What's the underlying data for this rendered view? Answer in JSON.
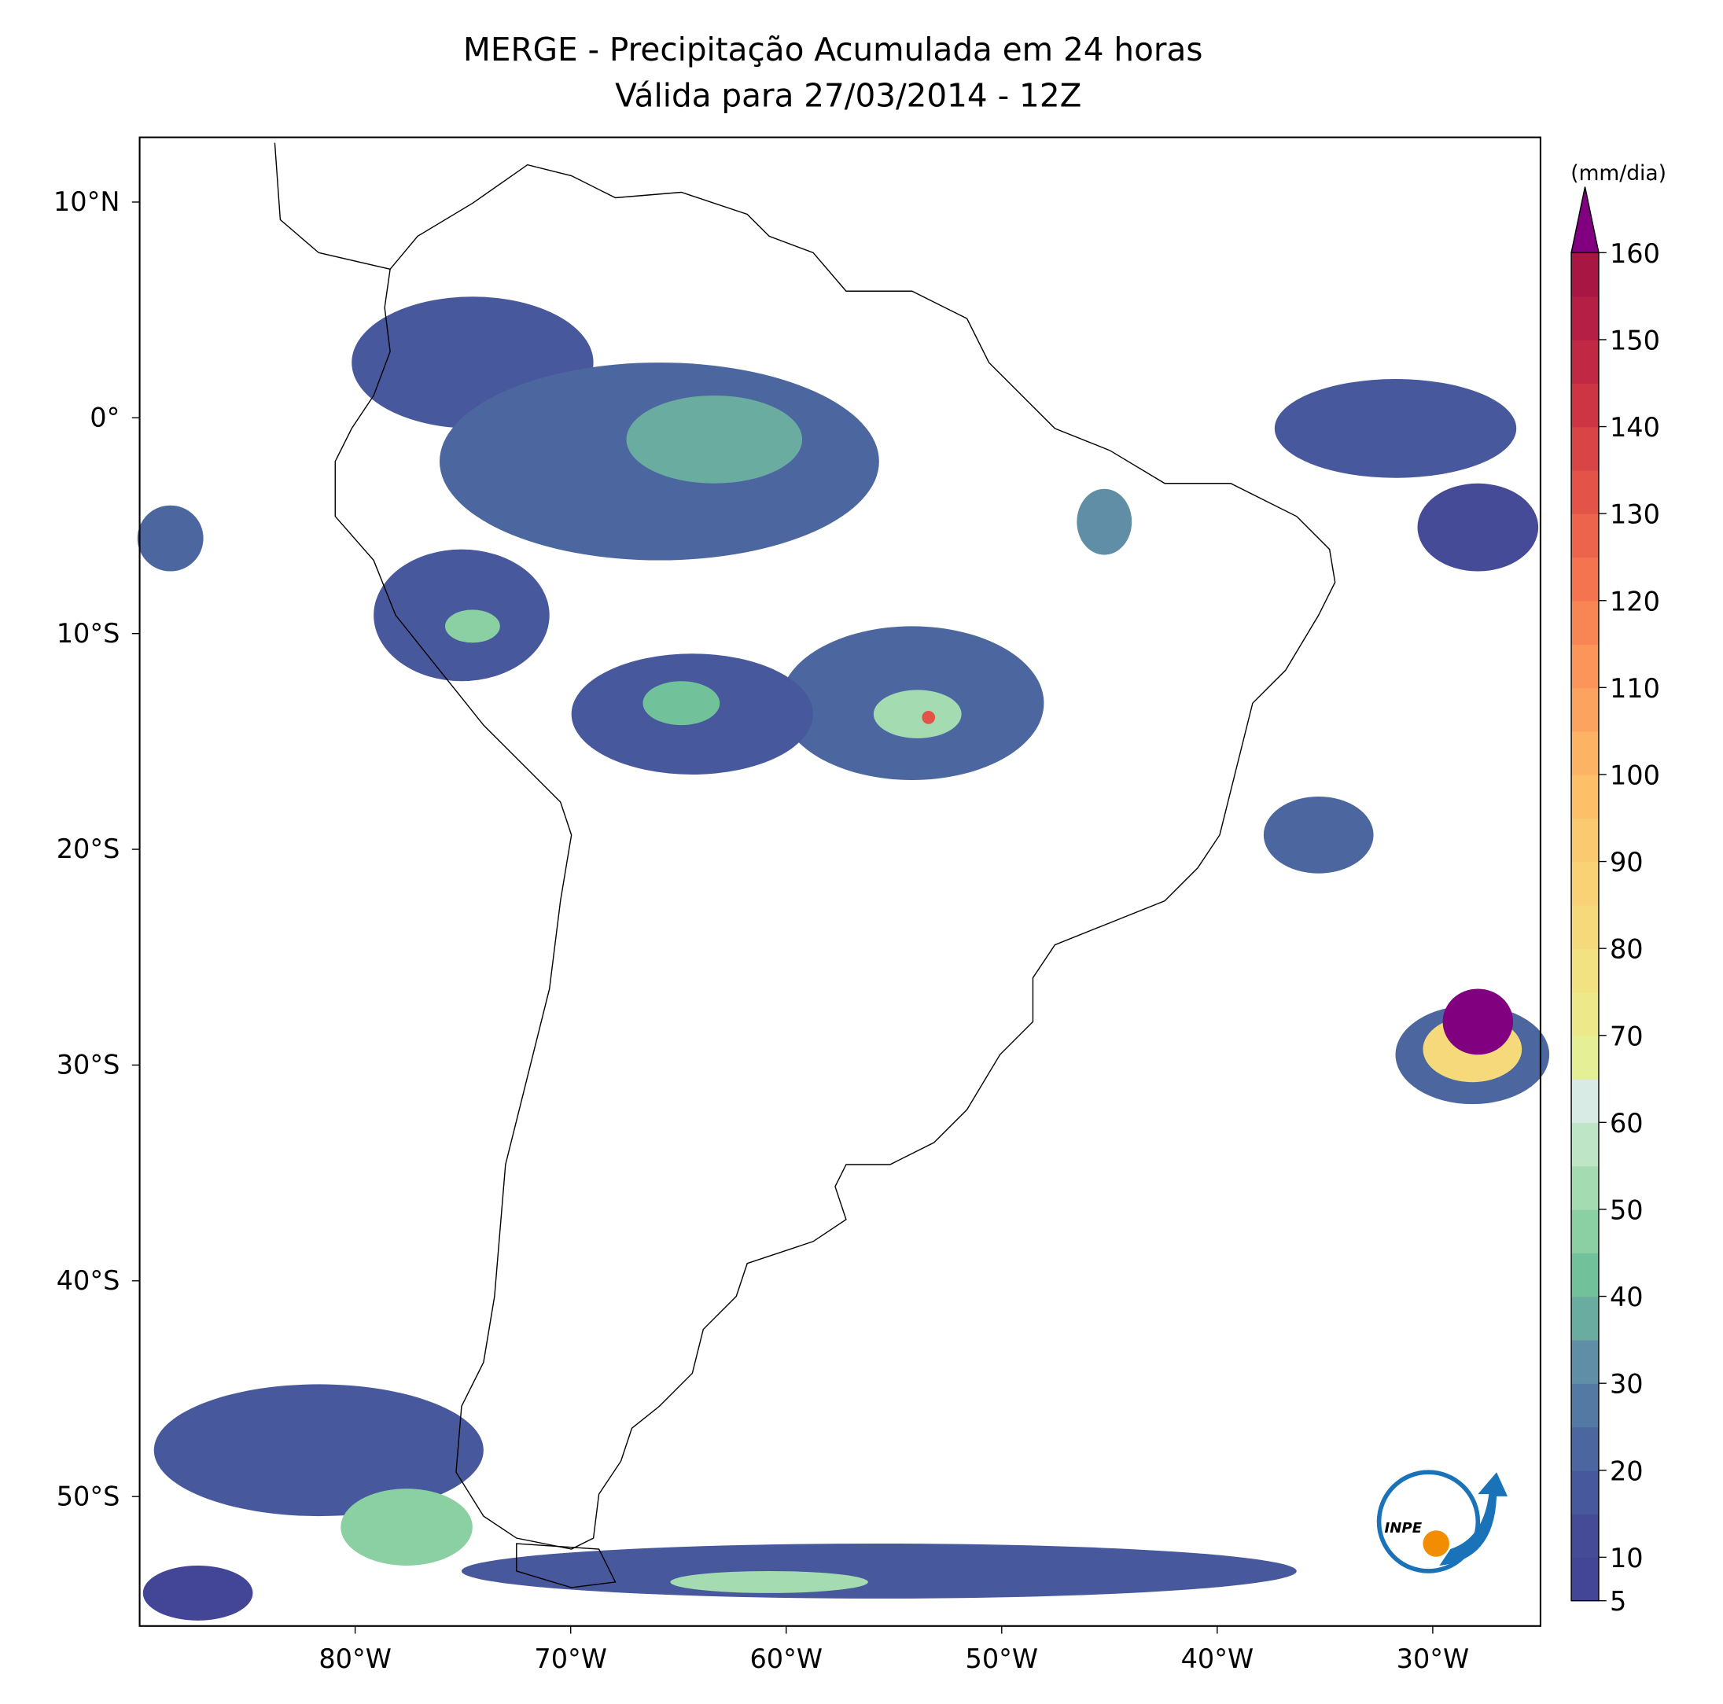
{
  "title": "MERGE - Precipitação Acumulada em 24 horas",
  "subtitle": "Válida para 27/03/2014 - 12Z",
  "map": {
    "xlim": [
      -90,
      -25
    ],
    "ylim": [
      -56,
      13
    ],
    "xticks": [
      {
        "value": -80,
        "label": "80°W"
      },
      {
        "value": -70,
        "label": "70°W"
      },
      {
        "value": -60,
        "label": "60°W"
      },
      {
        "value": -50,
        "label": "50°W"
      },
      {
        "value": -40,
        "label": "40°W"
      },
      {
        "value": -30,
        "label": "30°W"
      }
    ],
    "yticks": [
      {
        "value": 10,
        "label": "10°N"
      },
      {
        "value": 0,
        "label": "0°"
      },
      {
        "value": -10,
        "label": "10°S"
      },
      {
        "value": -20,
        "label": "20°S"
      },
      {
        "value": -30,
        "label": "30°S"
      },
      {
        "value": -40,
        "label": "40°S"
      },
      {
        "value": -50,
        "label": "50°S"
      }
    ]
  },
  "colorbar": {
    "label": "(mm/dia)",
    "levels": [
      5,
      10,
      15,
      20,
      25,
      30,
      35,
      40,
      45,
      50,
      55,
      60,
      65,
      70,
      75,
      80,
      85,
      90,
      95,
      100,
      105,
      110,
      115,
      120,
      125,
      130,
      135,
      140,
      145,
      150,
      155,
      160
    ],
    "colors": [
      "#434596",
      "#454b97",
      "#48589c",
      "#4c679f",
      "#5479a3",
      "#5f8ea6",
      "#6aaca0",
      "#71c29a",
      "#8ad0a3",
      "#a4dbb1",
      "#bfe5c7",
      "#d8ece5",
      "#e4ef96",
      "#ede88a",
      "#f2e282",
      "#f6d97b",
      "#f9d275",
      "#fbca70",
      "#fdc068",
      "#fdb364",
      "#fca35f",
      "#fb955a",
      "#f88554",
      "#f3744f",
      "#ec644b",
      "#e35348",
      "#d94446",
      "#cd3545",
      "#c12844",
      "#b51e45",
      "#a81744"
    ],
    "extend_color": "#800080",
    "ticks": [
      5,
      10,
      20,
      30,
      40,
      50,
      60,
      70,
      80,
      90,
      100,
      110,
      120,
      130,
      140,
      150,
      160
    ]
  },
  "logo": {
    "text": "INPE"
  }
}
